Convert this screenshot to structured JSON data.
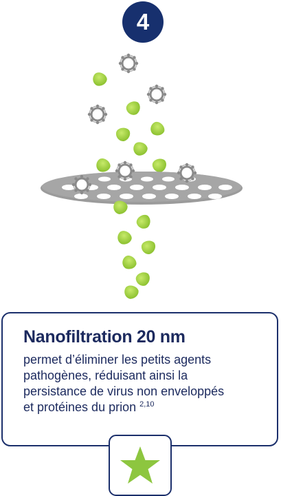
{
  "step": {
    "number": "4"
  },
  "card": {
    "title": "Nanofiltration 20 nm",
    "body_lines": [
      "permet d’éliminer les petits agents",
      "pathogènes, réduisant ainsi la",
      "persistance de virus non enveloppés",
      "et protéines du prion"
    ],
    "superscript": "2,10"
  },
  "icons": {
    "badge": "step-number-badge",
    "filter": "nanofilter-membrane-icon",
    "virus": "enveloped-virus-particle-icon",
    "protein": "small-protein-particle-icon",
    "rating": "star-icon"
  },
  "colors": {
    "navy": "#1b2f6b",
    "text": "#1c2a5e",
    "badge_fill": "#17306e",
    "filter_gray": "#9a9a9a",
    "green": "#9ccc3a",
    "green_dark": "#7fb522",
    "virus_ring": "#8e8e8e",
    "star": "#8dc63f"
  }
}
